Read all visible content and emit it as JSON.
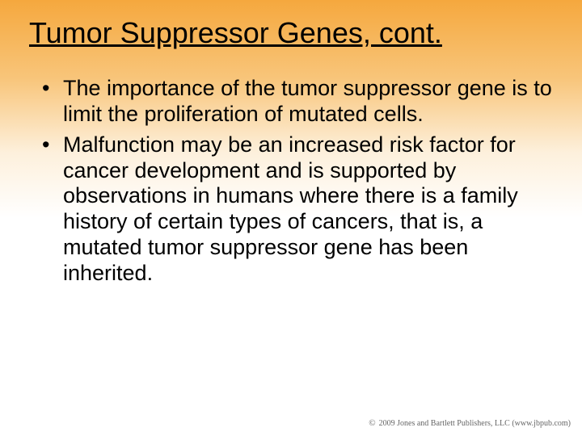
{
  "slide": {
    "title": "Tumor Suppressor Genes, cont.",
    "bullets": [
      "The importance of the tumor suppressor gene is to limit the proliferation of mutated cells.",
      "Malfunction may be an increased risk factor for cancer development and is supported by observations in humans where there is a family history of certain types of cancers, that is, a mutated tumor suppressor gene has been inherited."
    ],
    "copyright": "2009 Jones and Bartlett Publishers, LLC (www.jbpub.com)"
  },
  "style": {
    "background_gradient_top": "#f5a83e",
    "background_gradient_mid": "#fdf0dc",
    "background_gradient_bottom": "#ffffff",
    "title_fontsize": 36,
    "body_fontsize": 27,
    "text_color": "#000000",
    "copyright_color": "#666666",
    "copyright_fontsize": 10
  }
}
